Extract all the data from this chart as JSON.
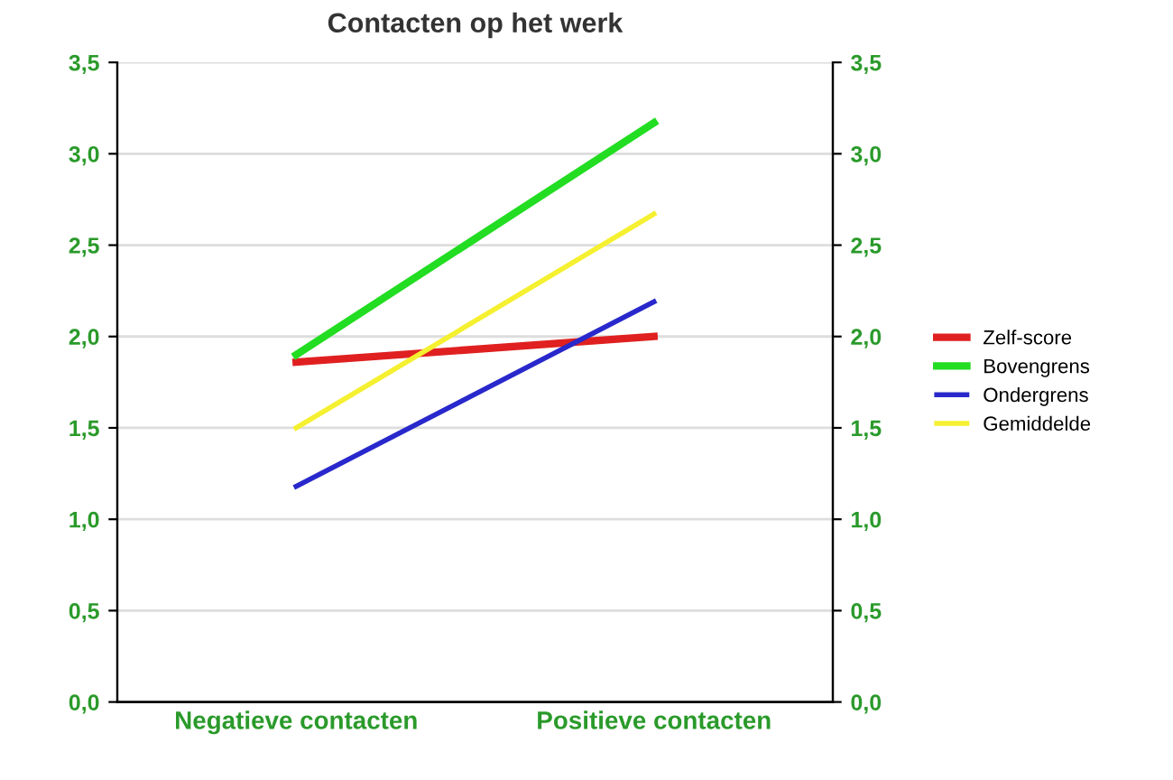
{
  "chart_data": {
    "type": "line",
    "title": "Contacten op het werk",
    "categories": [
      "Negatieve contacten",
      "Positieve contacten"
    ],
    "series": [
      {
        "name": "Zelf-score",
        "color": "#e02020",
        "values": [
          1.86,
          2.0
        ]
      },
      {
        "name": "Bovengrens",
        "color": "#22dd22",
        "values": [
          1.9,
          3.17
        ]
      },
      {
        "name": "Ondergrens",
        "color": "#2828cc",
        "values": [
          1.18,
          2.19
        ]
      },
      {
        "name": "Gemiddelde",
        "color": "#f5f030",
        "values": [
          1.5,
          2.67
        ]
      }
    ],
    "ylim": [
      0,
      3.5
    ],
    "yticks": [
      {
        "value": 0,
        "label": "0,0"
      },
      {
        "value": 0.5,
        "label": "0,5"
      },
      {
        "value": 1,
        "label": "1,0"
      },
      {
        "value": 1.5,
        "label": "1,5"
      },
      {
        "value": 2,
        "label": "2,0"
      },
      {
        "value": 2.5,
        "label": "2,5"
      },
      {
        "value": 3,
        "label": "3,0"
      },
      {
        "value": 3.5,
        "label": "3,5"
      }
    ],
    "y2lim": [
      0,
      3.5
    ],
    "y2ticks": [
      {
        "value": 0,
        "label": "0,0"
      },
      {
        "value": 0.5,
        "label": "0,5"
      },
      {
        "value": 1,
        "label": "1,0"
      },
      {
        "value": 1.5,
        "label": "1,5"
      },
      {
        "value": 2,
        "label": "2,0"
      },
      {
        "value": 2.5,
        "label": "2,5"
      },
      {
        "value": 3,
        "label": "3,0"
      },
      {
        "value": 3.5,
        "label": "3,5"
      }
    ],
    "grid": true,
    "legend": "right",
    "marker": "none",
    "line_style": "solid"
  }
}
